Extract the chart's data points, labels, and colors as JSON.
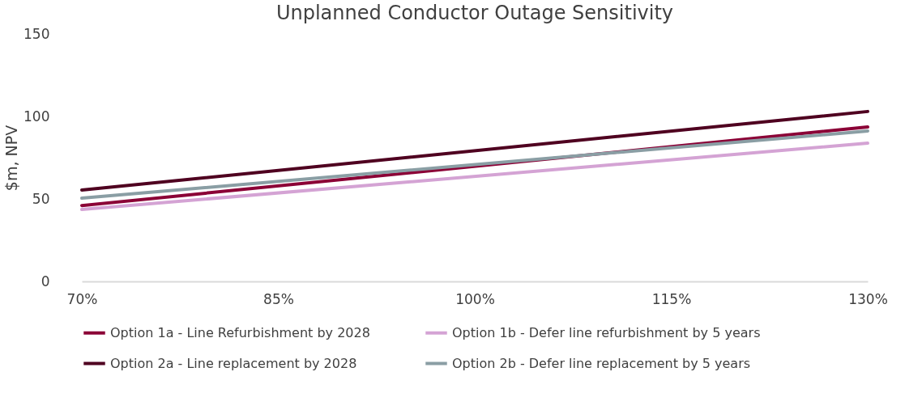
{
  "chart_data": {
    "type": "line",
    "title": "Unplanned Conductor Outage Sensitivity",
    "ylabel": "$m, NPV",
    "x": [
      70,
      130
    ],
    "xlim": [
      70,
      130
    ],
    "xticks": [
      {
        "value": 70,
        "label": "70%"
      },
      {
        "value": 85,
        "label": "85%"
      },
      {
        "value": 100,
        "label": "100%"
      },
      {
        "value": 115,
        "label": "115%"
      },
      {
        "value": 130,
        "label": "130%"
      }
    ],
    "ylim": [
      0,
      150
    ],
    "yticks": [
      0,
      50,
      100,
      150
    ],
    "grid": false,
    "legend": "bottom",
    "marker": "none",
    "line_style": "solid",
    "series": [
      {
        "name": "Option 1a - Line Refurbishment by 2028",
        "color": "#8b0036",
        "values": [
          46,
          93.6
        ]
      },
      {
        "name": "Option 1b - Defer line refurbishment by 5 years",
        "color": "#d4a3d4",
        "values": [
          43.6,
          83.8
        ]
      },
      {
        "name": "Option 2a - Line replacement by 2028",
        "color": "#4f0020",
        "values": [
          55.4,
          103
        ]
      },
      {
        "name": "Option 2b - Defer line replacement by 5 years",
        "color": "#8a9ea4",
        "values": [
          50.5,
          91.2
        ]
      }
    ]
  }
}
